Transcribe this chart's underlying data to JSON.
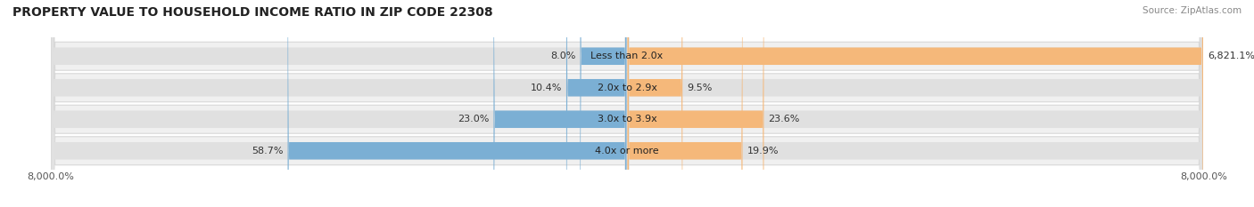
{
  "title": "PROPERTY VALUE TO HOUSEHOLD INCOME RATIO IN ZIP CODE 22308",
  "source": "Source: ZipAtlas.com",
  "categories": [
    "Less than 2.0x",
    "2.0x to 2.9x",
    "3.0x to 3.9x",
    "4.0x or more"
  ],
  "without_mortgage": [
    8.0,
    10.4,
    23.0,
    58.7
  ],
  "with_mortgage": [
    6821.1,
    9.5,
    23.6,
    19.9
  ],
  "color_without": "#7BAFD4",
  "color_with": "#F5B87A",
  "bar_bg_color": "#E0E0E0",
  "row_bg_color": "#F0F0F0",
  "row_border_color": "#D8D8D8",
  "axis_min": -8000,
  "axis_max": 8000,
  "axis_label_left": "8,000.0%",
  "axis_label_right": "8,000.0%",
  "title_fontsize": 10,
  "source_fontsize": 7.5,
  "label_fontsize": 8,
  "cat_fontsize": 8,
  "tick_fontsize": 8,
  "legend_fontsize": 8,
  "figsize": [
    14.06,
    2.33
  ],
  "dpi": 100
}
